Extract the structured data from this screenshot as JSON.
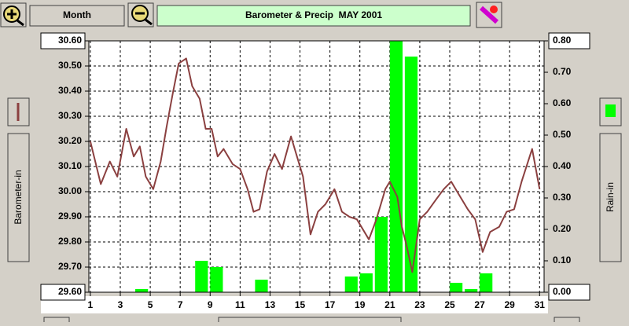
{
  "toolbar": {
    "month_button": "Month",
    "title": "Barometer & Precip  MAY 2001"
  },
  "chart_data": {
    "type": "combo",
    "ylabel": "Barometer-in",
    "y2label": "Rain-in",
    "xlim": [
      0.9,
      31.3
    ],
    "xticks": [
      1,
      3,
      5,
      7,
      9,
      11,
      13,
      15,
      17,
      19,
      21,
      23,
      25,
      27,
      29,
      31
    ],
    "ylim": [
      29.6,
      30.6
    ],
    "yticks": [
      {
        "value": 29.6,
        "label": "29.60"
      },
      {
        "value": 29.7,
        "label": "29.70"
      },
      {
        "value": 29.8,
        "label": "29.80"
      },
      {
        "value": 29.9,
        "label": "29.90"
      },
      {
        "value": 30.0,
        "label": "30.00"
      },
      {
        "value": 30.1,
        "label": "30.10"
      },
      {
        "value": 30.2,
        "label": "30.20"
      },
      {
        "value": 30.3,
        "label": "30.30"
      },
      {
        "value": 30.4,
        "label": "30.40"
      },
      {
        "value": 30.5,
        "label": "30.50"
      },
      {
        "value": 30.6,
        "label": "30.60"
      }
    ],
    "y2lim": [
      0,
      0.8
    ],
    "y2ticks": [
      {
        "value": 0,
        "label": "0.00"
      },
      {
        "value": 0.1,
        "label": "0.10"
      },
      {
        "value": 0.2,
        "label": "0.20"
      },
      {
        "value": 0.3,
        "label": "0.30"
      },
      {
        "value": 0.4,
        "label": "0.40"
      },
      {
        "value": 0.5,
        "label": "0.50"
      },
      {
        "value": 0.6,
        "label": "0.60"
      },
      {
        "value": 0.7,
        "label": "0.70"
      },
      {
        "value": 0.8,
        "label": "0.80"
      }
    ],
    "grid": true,
    "series": [
      {
        "type": "line",
        "axis": "y",
        "color": "#8b4040",
        "x": [
          1.0,
          1.7,
          2.3,
          2.8,
          3.4,
          3.9,
          4.3,
          4.7,
          5.2,
          5.7,
          6.1,
          6.5,
          6.9,
          7.4,
          7.8,
          8.3,
          8.7,
          9.1,
          9.5,
          9.9,
          10.5,
          11.0,
          11.5,
          11.9,
          12.3,
          12.8,
          13.3,
          13.8,
          14.4,
          14.8,
          15.2,
          15.7,
          16.2,
          16.7,
          17.3,
          17.8,
          18.3,
          18.8,
          19.6,
          20.1,
          20.7,
          21.0,
          21.5,
          21.8,
          22.1,
          22.5,
          23.0,
          23.5,
          24.1,
          24.6,
          25.1,
          25.6,
          26.2,
          26.7,
          27.2,
          27.7,
          28.3,
          28.8,
          29.3,
          29.8,
          30.5,
          31.0
        ],
        "values": [
          30.2,
          30.03,
          30.12,
          30.06,
          30.25,
          30.14,
          30.18,
          30.06,
          30.01,
          30.12,
          30.26,
          30.39,
          30.51,
          30.53,
          30.42,
          30.37,
          30.25,
          30.25,
          30.14,
          30.17,
          30.11,
          30.09,
          30.01,
          29.92,
          29.93,
          30.08,
          30.15,
          30.09,
          30.22,
          30.14,
          30.06,
          29.83,
          29.92,
          29.95,
          30.01,
          29.92,
          29.9,
          29.89,
          29.81,
          29.89,
          30.01,
          30.04,
          29.98,
          29.86,
          29.79,
          29.68,
          29.89,
          29.92,
          29.97,
          30.01,
          30.04,
          29.99,
          29.93,
          29.89,
          29.76,
          29.84,
          29.86,
          29.92,
          29.93,
          30.04,
          30.17,
          30.01
        ]
      },
      {
        "type": "bar",
        "axis": "y2",
        "color": "#00ff00",
        "x": [
          4,
          8,
          9,
          12,
          18,
          19,
          20,
          21,
          22,
          25,
          26,
          27
        ],
        "values": [
          0.01,
          0.1,
          0.08,
          0.04,
          0.05,
          0.06,
          0.24,
          0.8,
          0.75,
          0.03,
          0.01,
          0.06
        ]
      }
    ]
  }
}
